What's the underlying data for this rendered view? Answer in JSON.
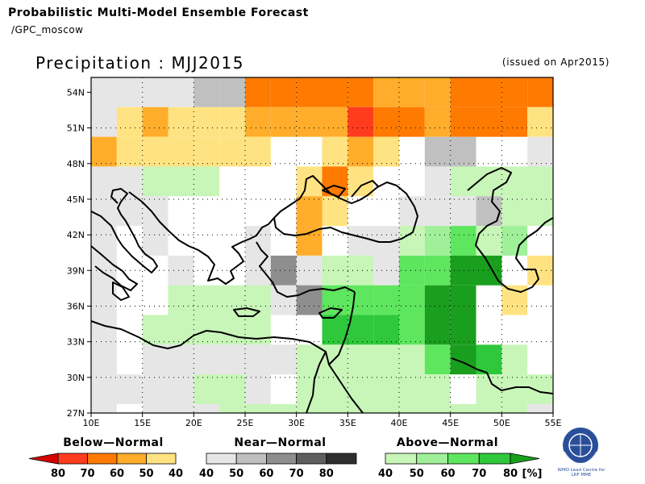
{
  "header": {
    "title": "Probabilistic Multi-Model Ensemble Forecast",
    "subtitle": "/GPC_moscow",
    "map_title": "Precipitation : MJJ2015",
    "issued": "(issued on Apr2015)"
  },
  "axes": {
    "lat_labels": [
      "54N",
      "51N",
      "48N",
      "45N",
      "42N",
      "39N",
      "36N",
      "33N",
      "30N",
      "27N"
    ],
    "lat_values": [
      54,
      51,
      48,
      45,
      42,
      39,
      36,
      33,
      30,
      27
    ],
    "lon_labels": [
      "10E",
      "15E",
      "20E",
      "25E",
      "30E",
      "35E",
      "40E",
      "45E",
      "50E",
      "55E"
    ],
    "lon_values": [
      10,
      15,
      20,
      25,
      30,
      35,
      40,
      45,
      50,
      55
    ],
    "lon_range": [
      10,
      55
    ],
    "lat_range": [
      27,
      55.25
    ],
    "grid": "dotted"
  },
  "legend": {
    "below": {
      "title": "Below—Normal",
      "ticks": [
        "80",
        "70",
        "60",
        "50",
        "40"
      ],
      "colors": [
        "#d60000",
        "#ff3c1e",
        "#ff7a00",
        "#ffad2a",
        "#ffe382"
      ]
    },
    "near": {
      "title": "Near—Normal",
      "ticks": [
        "40",
        "50",
        "60",
        "70",
        "80"
      ],
      "colors": [
        "#e6e6e6",
        "#c0c0c0",
        "#8e8e8e",
        "#5e5e5e",
        "#2e2e2e"
      ]
    },
    "above": {
      "title": "Above—Normal",
      "ticks": [
        "40",
        "50",
        "60",
        "70",
        "80"
      ],
      "unit": "[%]",
      "colors": [
        "#c8f5b8",
        "#a0f09a",
        "#5ee65e",
        "#2fc83c",
        "#1a9e1e"
      ]
    }
  },
  "logo": {
    "caption_line1": "WMO Lead Centre for",
    "caption_line2": "LRF MME"
  },
  "chart_data": {
    "type": "heatmap",
    "title": "Precipitation : MJJ2015",
    "grid_origin_lon": 10,
    "grid_origin_lat": 55.25,
    "cell_deg": 2.5,
    "key": {
      ".": "none",
      "y": "below-40",
      "o": "below-50",
      "O": "below-60",
      "r": "below-70",
      "g": "near-40",
      "G": "near-50",
      "D": "near-60",
      "K": "near-70",
      "a": "above-40",
      "b": "above-50",
      "c": "above-60",
      "d": "above-70",
      "e": "above-80"
    },
    "rows": [
      "ggggGGOOOOOoooOOOOyy",
      "gyoyyyoooorOOoOOOyy.",
      "oyyyyyy..yoy.GG..ggg",
      "ggaaa...yOy..gaaaaaa",
      "ggg.....oy..gggGaaaa",
      "g.g...g.o.ggabcab.ay",
      "g..g..gDgaagccee.y.O",
      "g..aaaagDccccee.y.gO",
      "g.aaaaa..dddcee...ay",
      "g.ggggggaaaaaceda.aa",
      "ggggaag.aaaaaa.aaa.y",
      "g.gggaaaaaaaaaaaagaa",
      "ygggyGaaaaaaaaaa.G..",
      "ygggggaaaaaagaaGgg.g",
      "oggggcaaaaa..aaGgGoo",
      "ogggggaaaagaaaaGGOoo",
      "yggaaaggaaaagGaGgGOo"
    ]
  }
}
